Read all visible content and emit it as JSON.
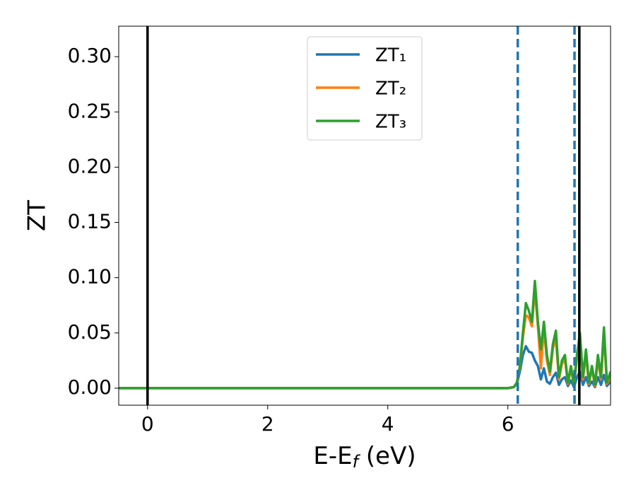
{
  "chart_data": {
    "type": "line",
    "y_label": "ZT",
    "x_label": {
      "main": "E-E",
      "sub": "f",
      "unit": " (eV)"
    },
    "x": [
      -0.48,
      6.0,
      6.1,
      6.15,
      6.2,
      6.25,
      6.3,
      6.35,
      6.4,
      6.45,
      6.5,
      6.55,
      6.6,
      6.65,
      6.7,
      6.75,
      6.8,
      6.85,
      6.9,
      6.95,
      7.0,
      7.05,
      7.1,
      7.15,
      7.2,
      7.25,
      7.3,
      7.35,
      7.4,
      7.45,
      7.5,
      7.55,
      7.6,
      7.65,
      7.71
    ],
    "series": [
      {
        "name": "ZT₁",
        "color": "#1f77b4",
        "values": [
          0,
          0,
          0.001,
          0.004,
          0.015,
          0.03,
          0.038,
          0.033,
          0.032,
          0.025,
          0.02,
          0.008,
          0.018,
          0.006,
          0.004,
          0.01,
          0.014,
          0.003,
          0.008,
          0.01,
          0.002,
          0.007,
          0.001,
          0.01,
          0.015,
          0.003,
          0.01,
          0.002,
          0.006,
          0.001,
          0.01,
          0.003,
          0.012,
          0.002,
          0.006
        ]
      },
      {
        "name": "ZT₂",
        "color": "#ff7f0e",
        "values": [
          0,
          0,
          0.001,
          0.005,
          0.019,
          0.046,
          0.066,
          0.064,
          0.056,
          0.09,
          0.056,
          0.018,
          0.055,
          0.025,
          0.012,
          0.036,
          0.045,
          0.008,
          0.022,
          0.026,
          0.004,
          0.018,
          0.003,
          0.027,
          0.044,
          0.008,
          0.03,
          0.004,
          0.018,
          0.002,
          0.026,
          0.008,
          0.048,
          0.004,
          0.01
        ]
      },
      {
        "name": "ZT₃",
        "color": "#2ca02c",
        "values": [
          0,
          0,
          0.001,
          0.005,
          0.02,
          0.05,
          0.077,
          0.07,
          0.06,
          0.097,
          0.06,
          0.035,
          0.06,
          0.03,
          0.015,
          0.04,
          0.052,
          0.01,
          0.025,
          0.03,
          0.005,
          0.02,
          0.003,
          0.03,
          0.05,
          0.01,
          0.035,
          0.005,
          0.02,
          0.003,
          0.03,
          0.01,
          0.055,
          0.005,
          0.015
        ]
      }
    ],
    "vlines": [
      {
        "x": 0,
        "color": "#000000",
        "dashed": false
      },
      {
        "x": 7.19,
        "color": "#000000",
        "dashed": false
      },
      {
        "x": 6.165,
        "color": "#1f77b4",
        "dashed": true
      },
      {
        "x": 7.11,
        "color": "#1f77b4",
        "dashed": true
      }
    ],
    "xlim": [
      -0.48,
      7.71
    ],
    "ylim": [
      -0.0154,
      0.3276
    ],
    "xticks": [
      0,
      2,
      4,
      6
    ],
    "yticks": [
      {
        "value": 0,
        "label": "0.00"
      },
      {
        "value": 0.05,
        "label": "0.05"
      },
      {
        "value": 0.1,
        "label": "0.10"
      },
      {
        "value": 0.15,
        "label": "0.15"
      },
      {
        "value": 0.2,
        "label": "0.20"
      },
      {
        "value": 0.25,
        "label": "0.25"
      },
      {
        "value": 0.3,
        "label": "0.30"
      }
    ],
    "legend": "upper center"
  }
}
